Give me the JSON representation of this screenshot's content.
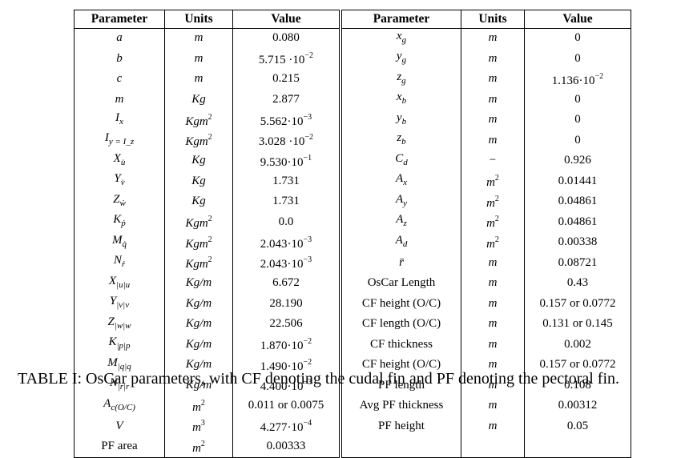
{
  "table": {
    "headers": [
      "Parameter",
      "Units",
      "Value",
      "Parameter",
      "Units",
      "Value"
    ],
    "rows": [
      [
        {
          "t": "a",
          "m": 1
        },
        {
          "t": "m",
          "m": 1
        },
        {
          "t": "0.080"
        },
        {
          "t": "x_g",
          "m": 1
        },
        {
          "t": "m",
          "m": 1
        },
        {
          "t": "0"
        }
      ],
      [
        {
          "t": "b",
          "m": 1
        },
        {
          "t": "m",
          "m": 1
        },
        {
          "t": "5.715 ·10",
          "sup": "−2"
        },
        {
          "t": "y_g",
          "m": 1
        },
        {
          "t": "m",
          "m": 1
        },
        {
          "t": "0"
        }
      ],
      [
        {
          "t": "c",
          "m": 1
        },
        {
          "t": "m",
          "m": 1
        },
        {
          "t": "0.215"
        },
        {
          "t": "z_g",
          "m": 1
        },
        {
          "t": "m",
          "m": 1
        },
        {
          "t": "1.136·10",
          "sup": "−2"
        }
      ],
      [
        {
          "t": "m",
          "m": 1
        },
        {
          "t": "Kg",
          "m": 1
        },
        {
          "t": "2.877"
        },
        {
          "t": "x_b",
          "m": 1
        },
        {
          "t": "m",
          "m": 1
        },
        {
          "t": "0"
        }
      ],
      [
        {
          "t": "I_x",
          "m": 1
        },
        {
          "t": "Kgm",
          "m": 1,
          "sup": "2"
        },
        {
          "t": "5.562·10",
          "sup": "−3"
        },
        {
          "t": "y_b",
          "m": 1
        },
        {
          "t": "m",
          "m": 1
        },
        {
          "t": "0"
        }
      ],
      [
        {
          "t": "I_y = I_z",
          "m": 1
        },
        {
          "t": "Kgm",
          "m": 1,
          "sup": "2"
        },
        {
          "t": "3.028 ·10",
          "sup": "−2"
        },
        {
          "t": "z_b",
          "m": 1
        },
        {
          "t": "m",
          "m": 1
        },
        {
          "t": "0"
        }
      ],
      [
        {
          "t": "X_u̇",
          "m": 1
        },
        {
          "t": "Kg",
          "m": 1
        },
        {
          "t": "9.530·10",
          "sup": "−1"
        },
        {
          "t": "C_d",
          "m": 1
        },
        {
          "t": "−"
        },
        {
          "t": "0.926"
        }
      ],
      [
        {
          "t": "Y_v̇",
          "m": 1
        },
        {
          "t": "Kg",
          "m": 1
        },
        {
          "t": "1.731"
        },
        {
          "t": "A_x",
          "m": 1
        },
        {
          "t": "m",
          "m": 1,
          "sup": "2"
        },
        {
          "t": "0.01441"
        }
      ],
      [
        {
          "t": "Z_ẇ",
          "m": 1
        },
        {
          "t": "Kg",
          "m": 1
        },
        {
          "t": "1.731"
        },
        {
          "t": "A_y",
          "m": 1
        },
        {
          "t": "m",
          "m": 1,
          "sup": "2"
        },
        {
          "t": "0.04861"
        }
      ],
      [
        {
          "t": "K_ṗ",
          "m": 1
        },
        {
          "t": "Kgm",
          "m": 1,
          "sup": "2"
        },
        {
          "t": "0.0"
        },
        {
          "t": "A_z",
          "m": 1
        },
        {
          "t": "m",
          "m": 1,
          "sup": "2"
        },
        {
          "t": "0.04861"
        }
      ],
      [
        {
          "t": "M_q̇",
          "m": 1
        },
        {
          "t": "Kgm",
          "m": 1,
          "sup": "2"
        },
        {
          "t": "2.043·10",
          "sup": "−3"
        },
        {
          "t": "A_d",
          "m": 1
        },
        {
          "t": "m",
          "m": 1,
          "sup": "2"
        },
        {
          "t": "0.00338"
        }
      ],
      [
        {
          "t": "N_ṙ",
          "m": 1
        },
        {
          "t": "Kgm",
          "m": 1,
          "sup": "2"
        },
        {
          "t": "2.043·10",
          "sup": "−3"
        },
        {
          "t": "r̄",
          "m": 1
        },
        {
          "t": "m",
          "m": 1
        },
        {
          "t": "0.08721"
        }
      ],
      [
        {
          "t": "X_|u|u",
          "m": 1
        },
        {
          "t": "Kg/m",
          "m": 1
        },
        {
          "t": "6.672"
        },
        {
          "t": "OsCar Length"
        },
        {
          "t": "m",
          "m": 1
        },
        {
          "t": "0.43"
        }
      ],
      [
        {
          "t": "Y_|v|v",
          "m": 1
        },
        {
          "t": "Kg/m",
          "m": 1
        },
        {
          "t": "28.190"
        },
        {
          "t": "CF height (O/C)"
        },
        {
          "t": "m",
          "m": 1
        },
        {
          "t": "0.157 or 0.0772"
        }
      ],
      [
        {
          "t": "Z_|w|w",
          "m": 1
        },
        {
          "t": "Kg/m",
          "m": 1
        },
        {
          "t": "22.506"
        },
        {
          "t": "CF length (O/C)"
        },
        {
          "t": "m",
          "m": 1
        },
        {
          "t": "0.131 or 0.145"
        }
      ],
      [
        {
          "t": "K_|p|p",
          "m": 1
        },
        {
          "t": "Kg/m",
          "m": 1
        },
        {
          "t": "1.870·10",
          "sup": "−2"
        },
        {
          "t": "CF thickness"
        },
        {
          "t": "m",
          "m": 1
        },
        {
          "t": "0.002"
        }
      ],
      [
        {
          "t": "M_|q|q",
          "m": 1
        },
        {
          "t": "Kg/m",
          "m": 1
        },
        {
          "t": "1.490·10",
          "sup": "−2"
        },
        {
          "t": "CF height (O/C)"
        },
        {
          "t": "m",
          "m": 1
        },
        {
          "t": "0.157 or 0.0772"
        }
      ],
      [
        {
          "t": "N_|r|r",
          "m": 1
        },
        {
          "t": "Kg/m",
          "m": 1
        },
        {
          "t": "4.400·10",
          "sup": "−3"
        },
        {
          "t": "PF length"
        },
        {
          "t": "m",
          "m": 1
        },
        {
          "t": "0.108"
        }
      ],
      [
        {
          "t": "A_c(O/C)",
          "m": 1
        },
        {
          "t": "m",
          "m": 1,
          "sup": "2"
        },
        {
          "t": "0.011 or 0.0075"
        },
        {
          "t": "Avg PF thickness"
        },
        {
          "t": "m",
          "m": 1
        },
        {
          "t": "0.00312"
        }
      ],
      [
        {
          "t": "V",
          "m": 1
        },
        {
          "t": "m",
          "m": 1,
          "sup": "3"
        },
        {
          "t": "4.277·10",
          "sup": "−4"
        },
        {
          "t": "PF height"
        },
        {
          "t": "m",
          "m": 1
        },
        {
          "t": "0.05"
        }
      ],
      [
        {
          "t": "PF area"
        },
        {
          "t": "m",
          "m": 1,
          "sup": "2"
        },
        {
          "t": "0.00333"
        },
        {
          "t": ""
        },
        {
          "t": ""
        },
        {
          "t": ""
        }
      ]
    ]
  },
  "caption": "TABLE I: OsCar parameters, with CF denoting the cudal fin and PF denoting the pectoral fin."
}
